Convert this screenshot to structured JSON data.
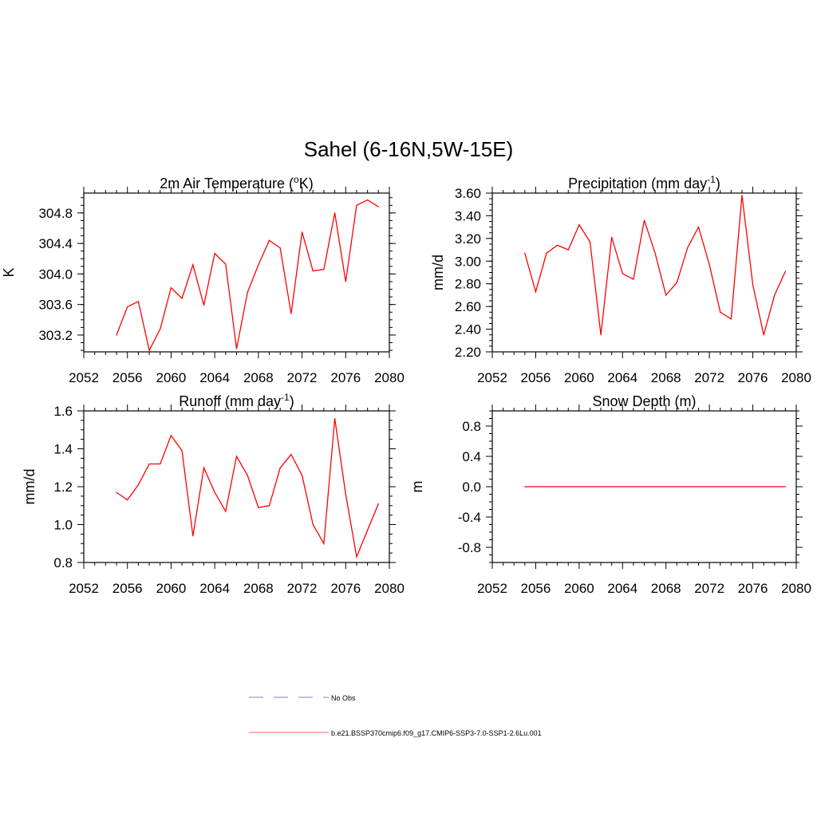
{
  "page_title": "Sahel (6-16N,5W-15E)",
  "legend": {
    "items": [
      {
        "label": "No Obs",
        "color": "#9999dd",
        "dash": true
      },
      {
        "label": "b.e21.BSSP370cmip6.f09_g17.CMIP6-SSP3-7.0-SSP1-2.6Lu.001",
        "color": "#ff8080",
        "dash": false
      }
    ]
  },
  "chart_data": [
    {
      "type": "line",
      "title": "2m Air Temperature (",
      "title_sup": "o",
      "title_end": "K)",
      "ylabel": "K",
      "xlim": [
        2052,
        2080
      ],
      "ylim": [
        302.98,
        305.06
      ],
      "xticks": [
        2052,
        2056,
        2060,
        2064,
        2068,
        2072,
        2076,
        2080
      ],
      "yticks": [
        303.2,
        303.6,
        304.0,
        304.4,
        304.8
      ],
      "ytick_labels": [
        "303.2",
        "303.6",
        "304.0",
        "304.4",
        "304.8"
      ],
      "color": "#ff0000",
      "x": [
        2055,
        2056,
        2057,
        2058,
        2059,
        2060,
        2061,
        2062,
        2063,
        2064,
        2065,
        2066,
        2067,
        2068,
        2069,
        2070,
        2071,
        2072,
        2073,
        2074,
        2075,
        2076,
        2077,
        2078,
        2079
      ],
      "values": [
        303.2,
        303.57,
        303.64,
        303.0,
        303.28,
        303.82,
        303.68,
        304.12,
        303.59,
        304.27,
        304.13,
        303.02,
        303.76,
        304.12,
        304.44,
        304.34,
        303.48,
        304.55,
        304.04,
        304.06,
        304.8,
        303.9,
        304.9,
        304.97,
        304.88
      ]
    },
    {
      "type": "line",
      "title": "Precipitation (mm day",
      "title_sup": "-1",
      "title_end": ")",
      "ylabel": "mm/d",
      "xlim": [
        2052,
        2080
      ],
      "ylim": [
        2.2,
        3.6
      ],
      "xticks": [
        2052,
        2056,
        2060,
        2064,
        2068,
        2072,
        2076,
        2080
      ],
      "yticks": [
        2.2,
        2.4,
        2.6,
        2.8,
        3.0,
        3.2,
        3.4,
        3.6
      ],
      "ytick_labels": [
        "2.20",
        "2.40",
        "2.60",
        "2.80",
        "3.00",
        "3.20",
        "3.40",
        "3.60"
      ],
      "color": "#ff0000",
      "x": [
        2055,
        2056,
        2057,
        2058,
        2059,
        2060,
        2061,
        2062,
        2063,
        2064,
        2065,
        2066,
        2067,
        2068,
        2069,
        2070,
        2071,
        2072,
        2073,
        2074,
        2075,
        2076,
        2077,
        2078,
        2079
      ],
      "values": [
        3.07,
        2.73,
        3.07,
        3.14,
        3.1,
        3.32,
        3.17,
        2.35,
        3.21,
        2.89,
        2.84,
        3.36,
        3.07,
        2.7,
        2.81,
        3.12,
        3.3,
        2.97,
        2.55,
        2.49,
        3.58,
        2.79,
        2.35,
        2.7,
        2.91
      ]
    },
    {
      "type": "line",
      "title": "Runoff (mm day",
      "title_sup": "-1",
      "title_end": ")",
      "ylabel": "mm/d",
      "xlim": [
        2052,
        2080
      ],
      "ylim": [
        0.8,
        1.6
      ],
      "xticks": [
        2052,
        2056,
        2060,
        2064,
        2068,
        2072,
        2076,
        2080
      ],
      "yticks": [
        0.8,
        1.0,
        1.2,
        1.4,
        1.6
      ],
      "ytick_labels": [
        "0.8",
        "1.0",
        "1.2",
        "1.4",
        "1.6"
      ],
      "color": "#ff0000",
      "x": [
        2055,
        2056,
        2057,
        2058,
        2059,
        2060,
        2061,
        2062,
        2063,
        2064,
        2065,
        2066,
        2067,
        2068,
        2069,
        2070,
        2071,
        2072,
        2073,
        2074,
        2075,
        2076,
        2077,
        2078,
        2079
      ],
      "values": [
        1.17,
        1.13,
        1.21,
        1.32,
        1.32,
        1.47,
        1.39,
        0.94,
        1.3,
        1.17,
        1.07,
        1.36,
        1.26,
        1.09,
        1.1,
        1.3,
        1.37,
        1.26,
        1.0,
        0.9,
        1.56,
        1.16,
        0.83,
        0.97,
        1.11
      ]
    },
    {
      "type": "line",
      "title": "Snow Depth (m)",
      "title_sup": "",
      "title_end": "",
      "ylabel": "m",
      "xlim": [
        2052,
        2080
      ],
      "ylim": [
        -1.0,
        1.0
      ],
      "xticks": [
        2052,
        2056,
        2060,
        2064,
        2068,
        2072,
        2076,
        2080
      ],
      "yticks": [
        -0.8,
        -0.4,
        0.0,
        0.4,
        0.8
      ],
      "ytick_labels": [
        "-0.8",
        "-0.4",
        "0.0",
        "0.4",
        "0.8"
      ],
      "color": "#ff0000",
      "x": [
        2055,
        2056,
        2057,
        2058,
        2059,
        2060,
        2061,
        2062,
        2063,
        2064,
        2065,
        2066,
        2067,
        2068,
        2069,
        2070,
        2071,
        2072,
        2073,
        2074,
        2075,
        2076,
        2077,
        2078,
        2079
      ],
      "values": [
        0,
        0,
        0,
        0,
        0,
        0,
        0,
        0,
        0,
        0,
        0,
        0,
        0,
        0,
        0,
        0,
        0,
        0,
        0,
        0,
        0,
        0,
        0,
        0,
        0
      ]
    }
  ]
}
